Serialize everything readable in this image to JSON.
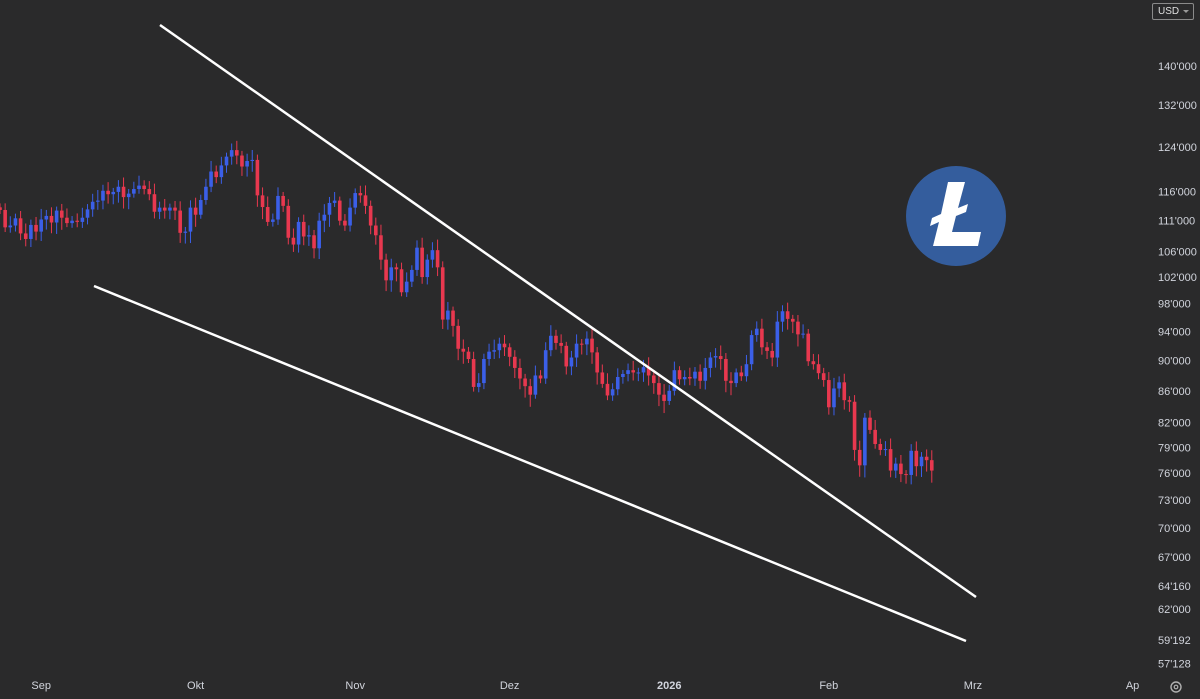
{
  "header": {
    "currency_label": "USD"
  },
  "colors": {
    "background": "#2a2a2b",
    "up_candle": "#3b5fe8",
    "down_candle": "#e8384f",
    "trendline": "#ffffff",
    "axis_text": "#d1d4dc",
    "logo_circle": "#345d9d",
    "logo_mark": "#ffffff"
  },
  "logo": {
    "icon": "litecoin-icon"
  },
  "footer": {
    "settings_icon": "gear-icon"
  },
  "chart_data": {
    "type": "candlestick",
    "title": "",
    "y_scale": "log",
    "y_axis_ticks": [
      "140'000",
      "132'000",
      "124'000",
      "116'000",
      "111'000",
      "106'000",
      "102'000",
      "98'000",
      "94'000",
      "90'000",
      "86'000",
      "82'000",
      "79'000",
      "76'000",
      "73'000",
      "70'000",
      "67'000",
      "64'160",
      "62'000",
      "59'192",
      "57'128"
    ],
    "x_axis_labels": [
      {
        "label": "Sep",
        "date": "2025-09-01",
        "bold": false
      },
      {
        "label": "Okt",
        "date": "2025-10-01",
        "bold": false
      },
      {
        "label": "Nov",
        "date": "2025-11-01",
        "bold": false
      },
      {
        "label": "Dez",
        "date": "2025-12-01",
        "bold": false
      },
      {
        "label": "2026",
        "date": "2026-01-01",
        "bold": true
      },
      {
        "label": "Feb",
        "date": "2026-02-01",
        "bold": false
      },
      {
        "label": "Mrz",
        "date": "2026-03-01",
        "bold": false
      },
      {
        "label": "Ap",
        "date": "2026-04-01",
        "bold": false
      }
    ],
    "x_range": [
      "2025-08-24",
      "2026-04-04"
    ],
    "y_range": [
      56400,
      150000
    ],
    "start_date": "2025-08-24",
    "close_series": [
      112800,
      109900,
      110200,
      111400,
      108900,
      108000,
      110300,
      109200,
      111200,
      111800,
      110700,
      112700,
      111500,
      110600,
      111000,
      110800,
      111500,
      112900,
      114200,
      114400,
      116100,
      115500,
      115900,
      116800,
      115000,
      115600,
      116400,
      117000,
      116400,
      115500,
      112500,
      113200,
      112700,
      113200,
      112700,
      109000,
      109200,
      113200,
      112000,
      114500,
      116800,
      119500,
      118500,
      120600,
      122200,
      123400,
      122400,
      120400,
      121400,
      121600,
      115300,
      113300,
      110800,
      111200,
      115200,
      113500,
      108200,
      107100,
      110800,
      108400,
      108600,
      106500,
      111000,
      112000,
      114000,
      114400,
      111000,
      110200,
      113200,
      115700,
      115300,
      113500,
      110200,
      108600,
      104700,
      101500,
      103500,
      103200,
      99700,
      101300,
      103100,
      106600,
      102000,
      104700,
      106200,
      103500,
      95700,
      97000,
      94800,
      91600,
      91200,
      90200,
      86500,
      87000,
      90200,
      91200,
      91400,
      92300,
      91800,
      90500,
      89000,
      87600,
      86600,
      85500,
      88000,
      87600,
      91400,
      93400,
      92400,
      92000,
      89200,
      90400,
      92300,
      92200,
      93000,
      91100,
      88400,
      86900,
      85400,
      86200,
      87800,
      88200,
      88700,
      88400,
      88400,
      89100,
      88000,
      87000,
      85500,
      84700,
      86000,
      88700,
      87500,
      87800,
      87600,
      88500,
      87300,
      89000,
      90400,
      90600,
      90200,
      87300,
      87000,
      88400,
      87900,
      89500,
      93500,
      94400,
      91800,
      91300,
      90400,
      95400,
      96900,
      95800,
      95400,
      93600,
      93700,
      89900,
      89500,
      88300,
      87400,
      83900,
      86300,
      87100,
      84800,
      84600,
      78700,
      76900,
      82600,
      81100,
      79400,
      78700,
      78800,
      76300,
      77100,
      75900,
      75800,
      78600,
      76800,
      77900,
      77500,
      76300
    ],
    "annotations": []
  }
}
